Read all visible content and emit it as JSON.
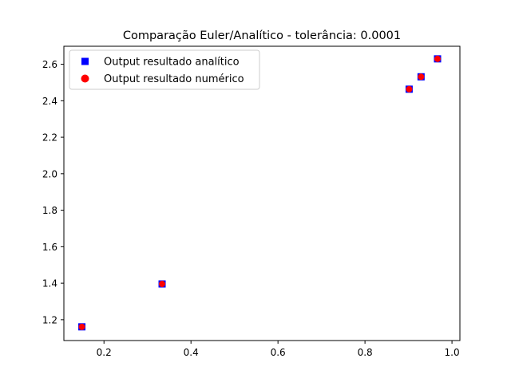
{
  "chart_data": {
    "type": "scatter",
    "title": "Comparação Euler/Analítico - tolerância: 0.0001",
    "xlabel": "",
    "ylabel": "",
    "xlim": [
      0.1078,
      1.0182
    ],
    "ylim": [
      1.0858,
      2.6986
    ],
    "xticks": [
      0.2,
      0.4,
      0.6,
      0.8,
      1.0
    ],
    "xtick_labels": [
      "0.2",
      "0.4",
      "0.6",
      "0.8",
      "1.0"
    ],
    "yticks": [
      1.2,
      1.4,
      1.6,
      1.8,
      2.0,
      2.2,
      2.4,
      2.6
    ],
    "ytick_labels": [
      "1.2",
      "1.4",
      "1.6",
      "1.8",
      "2.0",
      "2.2",
      "2.4",
      "2.6"
    ],
    "grid": false,
    "legend_position": "upper-left",
    "series": [
      {
        "name": "Output resultado analítico",
        "marker": "square",
        "color": "#0000ff",
        "points": [
          [
            0.1492,
            1.1609
          ],
          [
            0.3336,
            1.396
          ],
          [
            0.9015,
            2.4633
          ],
          [
            0.9289,
            2.5313
          ],
          [
            0.9668,
            2.6295
          ]
        ]
      },
      {
        "name": "Output resultado numérico",
        "marker": "circle",
        "color": "#ff0000",
        "points": [
          [
            0.1492,
            1.1609
          ],
          [
            0.3336,
            1.396
          ],
          [
            0.9015,
            2.4633
          ],
          [
            0.9289,
            2.5313
          ],
          [
            0.9668,
            2.6295
          ]
        ]
      }
    ]
  }
}
